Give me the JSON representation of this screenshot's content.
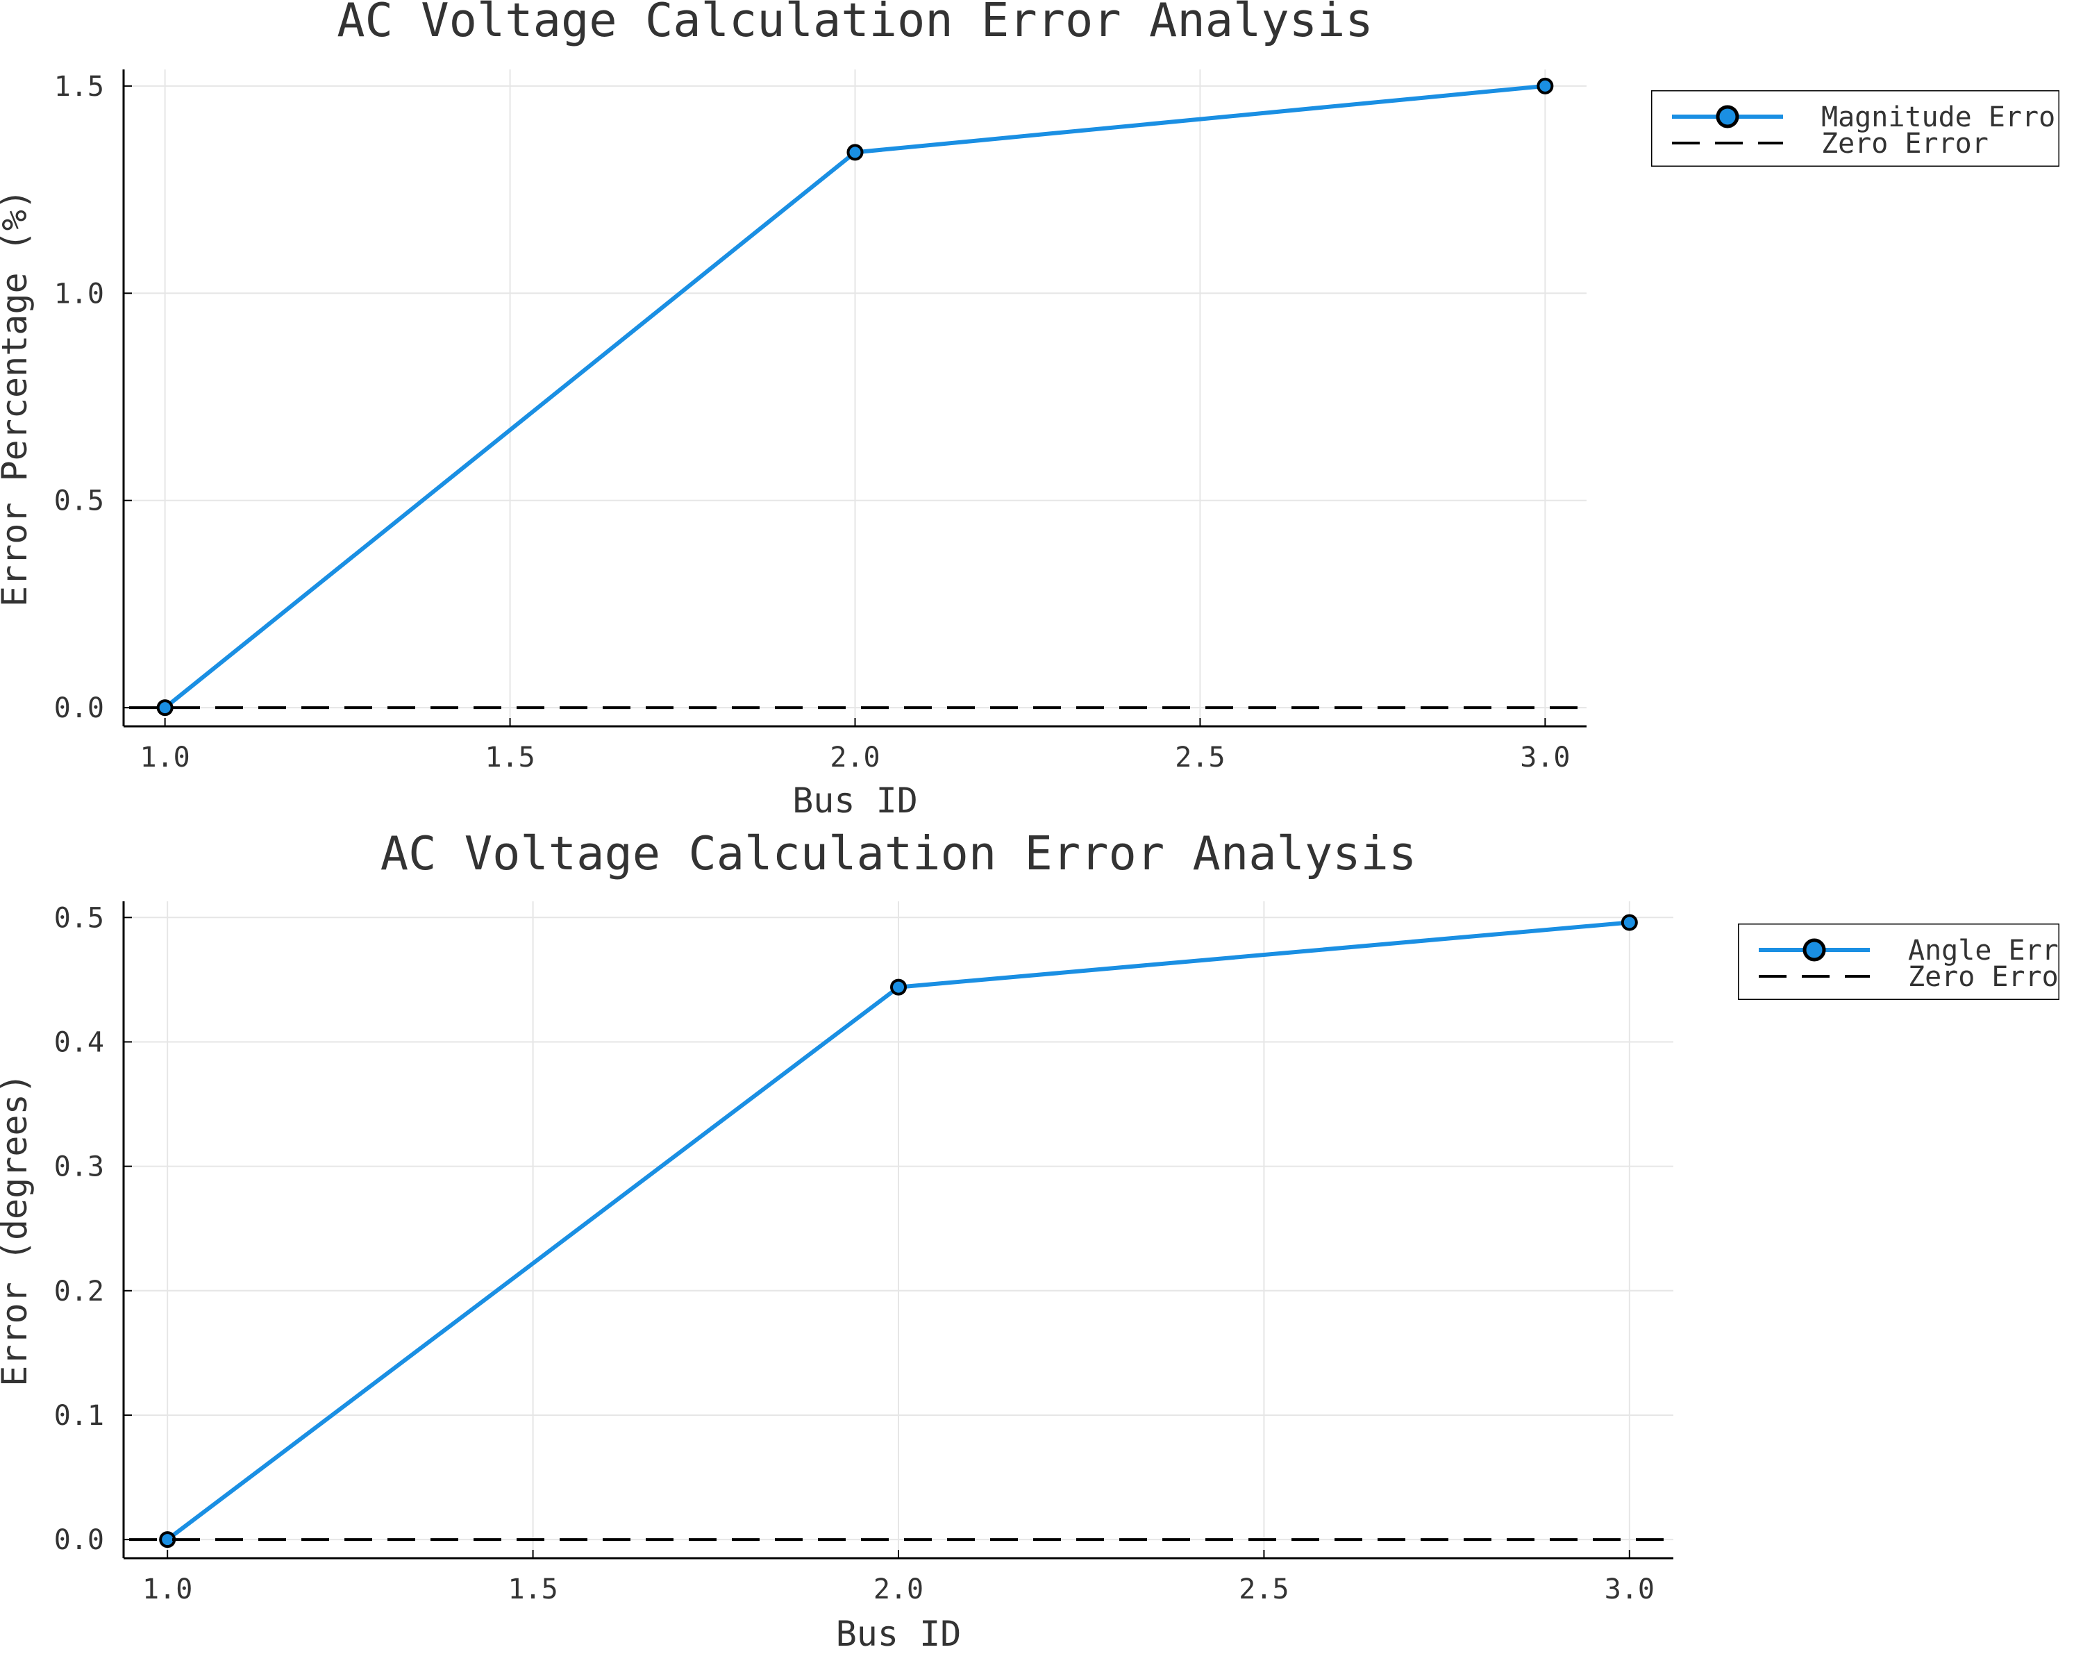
{
  "chart_data": [
    {
      "type": "line",
      "title": "AC Voltage Calculation Error Analysis",
      "xlabel": "Bus ID",
      "ylabel": "Error Percentage (%)",
      "x": [
        1.0,
        2.0,
        3.0
      ],
      "xlim": [
        0.94,
        3.06
      ],
      "ylim": [
        -0.045,
        1.54
      ],
      "xticks": [
        "1.0",
        "1.5",
        "2.0",
        "2.5",
        "3.0"
      ],
      "xtick_values": [
        1.0,
        1.5,
        2.0,
        2.5,
        3.0
      ],
      "yticks": [
        "0.0",
        "0.5",
        "1.0",
        "1.5"
      ],
      "ytick_values": [
        0.0,
        0.5,
        1.0,
        1.5
      ],
      "grid": true,
      "legend_position": "outer-top-right",
      "series": [
        {
          "name": "Magnitude Error",
          "values": [
            0.0,
            1.34,
            1.5
          ],
          "color": "#1a8fe3",
          "style": "solid",
          "marker": "circle"
        },
        {
          "name": "Zero Error",
          "values": [
            0.0,
            0.0,
            0.0
          ],
          "color": "#000000",
          "style": "dashed",
          "marker": "none"
        }
      ]
    },
    {
      "type": "line",
      "title": "AC Voltage Calculation Error Analysis",
      "xlabel": "Bus ID",
      "ylabel": "Error (degrees)",
      "x": [
        1.0,
        2.0,
        3.0
      ],
      "xlim": [
        0.94,
        3.06
      ],
      "ylim": [
        -0.015,
        0.513
      ],
      "xticks": [
        "1.0",
        "1.5",
        "2.0",
        "2.5",
        "3.0"
      ],
      "xtick_values": [
        1.0,
        1.5,
        2.0,
        2.5,
        3.0
      ],
      "yticks": [
        "0.0",
        "0.1",
        "0.2",
        "0.3",
        "0.4",
        "0.5"
      ],
      "ytick_values": [
        0.0,
        0.1,
        0.2,
        0.3,
        0.4,
        0.5
      ],
      "grid": true,
      "legend_position": "outer-top-right",
      "series": [
        {
          "name": "Angle Error",
          "values": [
            0.0,
            0.444,
            0.496
          ],
          "color": "#1a8fe3",
          "style": "solid",
          "marker": "circle"
        },
        {
          "name": "Zero Error",
          "values": [
            0.0,
            0.0,
            0.0
          ],
          "color": "#000000",
          "style": "dashed",
          "marker": "none"
        }
      ]
    }
  ]
}
